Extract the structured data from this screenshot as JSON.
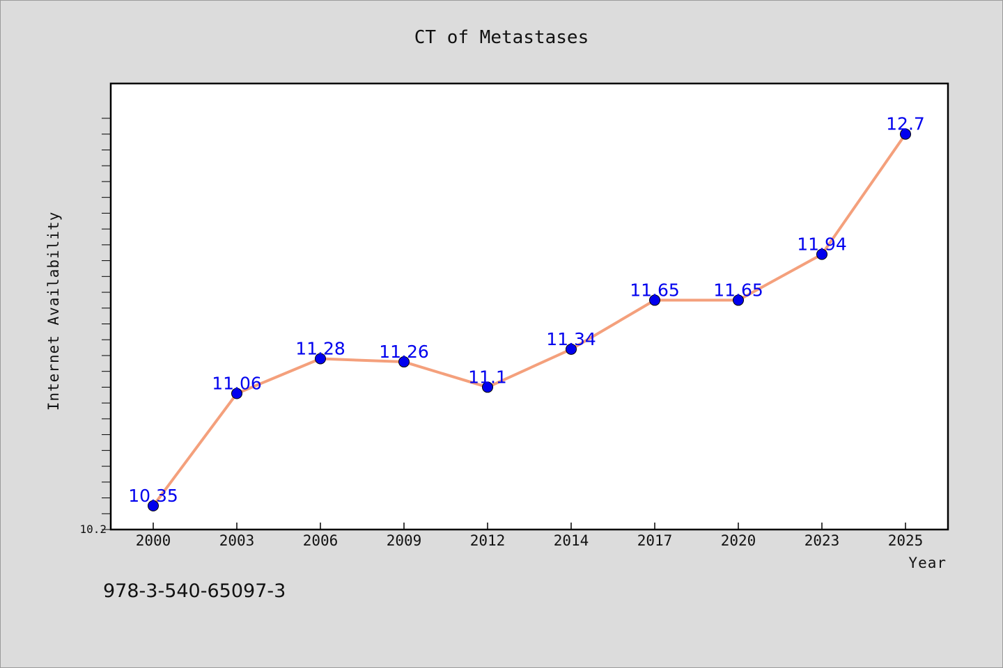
{
  "chart_data": {
    "type": "line",
    "title": "CT of Metastases",
    "xlabel": "Year",
    "ylabel": "Internet Availability",
    "categories": [
      "2000",
      "2003",
      "2006",
      "2009",
      "2012",
      "2014",
      "2017",
      "2020",
      "2023",
      "2025"
    ],
    "series": [
      {
        "values": [
          10.35,
          11.06,
          11.28,
          11.26,
          11.1,
          11.34,
          11.65,
          11.65,
          11.94,
          12.7
        ]
      }
    ],
    "data_labels": [
      "10.35",
      "11.06",
      "11.28",
      "11.26",
      "11.1",
      "11.34",
      "11.65",
      "11.65",
      "11.94",
      "12.7"
    ],
    "ylim": [
      10.2,
      13.02
    ],
    "ytick_labels": [
      "10.2"
    ],
    "grid": false,
    "line_color": "#f4a07c",
    "marker_color": "#0000ee",
    "label_color": "#0000ee"
  },
  "footer_text": "978-3-540-65097-3"
}
